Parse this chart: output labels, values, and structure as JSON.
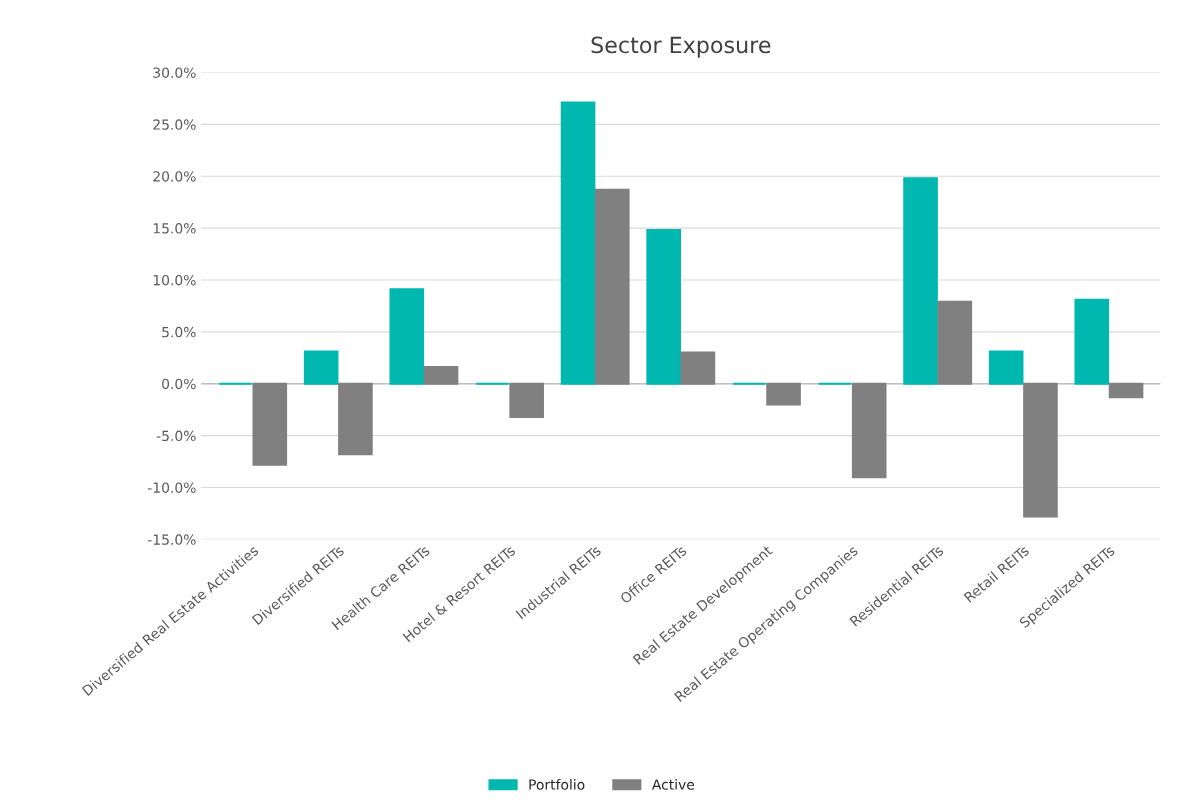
{
  "chart_data": {
    "type": "bar",
    "title": "Sector Exposure",
    "categories": [
      "Diversified Real Estate Activities",
      "Diversified REITs",
      "Health Care REITs",
      "Hotel & Resort REITs",
      "Industrial REITs",
      "Office REITs",
      "Real Estate Development",
      "Real Estate Operating Companies",
      "Residential REITs",
      "Retail REITs",
      "Specialized REITs"
    ],
    "series": [
      {
        "name": "Portfolio",
        "color": "#00b8b0",
        "values": [
          0,
          3.1,
          9.1,
          0,
          27.1,
          14.8,
          0,
          0,
          19.8,
          3.1,
          8.1
        ]
      },
      {
        "name": "Active",
        "color": "#808080",
        "values": [
          -7.8,
          -6.8,
          1.6,
          -3.2,
          18.7,
          3.0,
          -2.0,
          -9.0,
          7.9,
          -12.8,
          -1.3
        ]
      }
    ],
    "ylim": [
      -15,
      30
    ],
    "yticks": [
      {
        "value": -15,
        "label": "-15.0%"
      },
      {
        "value": -10,
        "label": "-10.0%"
      },
      {
        "value": -5,
        "label": "-5.0%"
      },
      {
        "value": 0,
        "label": "0.0%"
      },
      {
        "value": 5,
        "label": "5.0%"
      },
      {
        "value": 10,
        "label": "10.0%"
      },
      {
        "value": 15,
        "label": "15.0%"
      },
      {
        "value": 20,
        "label": "20.0%"
      },
      {
        "value": 25,
        "label": "25.0%"
      },
      {
        "value": 30,
        "label": "30.0%"
      }
    ],
    "grid": "y",
    "legend": "bottom"
  }
}
